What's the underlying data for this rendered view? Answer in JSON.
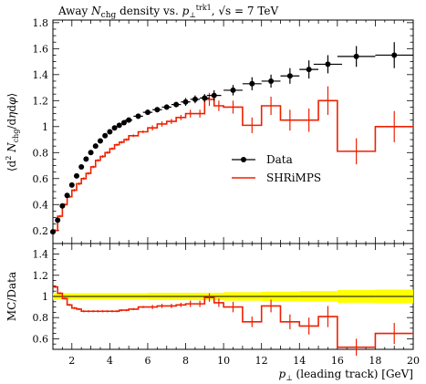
{
  "chart_data": {
    "type": "scatter",
    "title": "Away N_chg density vs. p_⊥^trk1, √s = 7 TeV",
    "xlabel": "p⊥ (leading track) [GeV]",
    "ylabel": "⟨d²Nchg/dηdφ⟩",
    "ratio_ylabel": "MC/Data",
    "xlim": [
      1,
      20
    ],
    "ylim": [
      0.1,
      1.82
    ],
    "ratio_ylim": [
      0.5,
      1.5
    ],
    "xticks": [
      2,
      4,
      6,
      8,
      10,
      12,
      14,
      16,
      18,
      20
    ],
    "yticks": [
      0.2,
      0.4,
      0.6,
      0.8,
      1.0,
      1.2,
      1.4,
      1.6,
      1.8
    ],
    "ratio_yticks": [
      0.6,
      0.8,
      1.0,
      1.2,
      1.4
    ],
    "legend_position": "right-middle",
    "series": [
      {
        "name": "Data",
        "color": "#000000",
        "x": [
          1.0,
          1.25,
          1.5,
          1.75,
          2.0,
          2.25,
          2.5,
          2.75,
          3.0,
          3.25,
          3.5,
          3.75,
          4.0,
          4.25,
          4.5,
          4.75,
          5.0,
          5.5,
          6.0,
          6.5,
          7.0,
          7.5,
          8.0,
          8.5,
          9.0,
          9.5,
          10.5,
          11.5,
          12.5,
          13.5,
          14.5,
          15.5,
          17.0,
          19.0
        ],
        "y": [
          0.19,
          0.28,
          0.39,
          0.47,
          0.55,
          0.62,
          0.69,
          0.75,
          0.8,
          0.85,
          0.89,
          0.93,
          0.96,
          0.99,
          1.01,
          1.03,
          1.05,
          1.08,
          1.11,
          1.13,
          1.15,
          1.17,
          1.19,
          1.21,
          1.22,
          1.24,
          1.28,
          1.33,
          1.35,
          1.39,
          1.44,
          1.48,
          1.54,
          1.55
        ],
        "yerr": [
          0.01,
          0.01,
          0.01,
          0.01,
          0.01,
          0.01,
          0.01,
          0.01,
          0.01,
          0.01,
          0.01,
          0.01,
          0.01,
          0.01,
          0.01,
          0.01,
          0.02,
          0.02,
          0.02,
          0.02,
          0.02,
          0.02,
          0.03,
          0.03,
          0.03,
          0.04,
          0.04,
          0.05,
          0.05,
          0.06,
          0.07,
          0.07,
          0.08,
          0.1
        ]
      },
      {
        "name": "SHRiMPS",
        "color": "#ee2000",
        "edges": [
          1.0,
          1.25,
          1.5,
          1.75,
          2.0,
          2.25,
          2.5,
          2.75,
          3.0,
          3.25,
          3.5,
          3.75,
          4.0,
          4.25,
          4.5,
          4.75,
          5.0,
          5.5,
          6.0,
          6.5,
          7.0,
          7.5,
          8.0,
          8.5,
          9.0,
          9.5,
          10.0,
          11.0,
          12.0,
          13.0,
          14.0,
          15.0,
          16.0,
          18.0,
          20.0
        ],
        "values": [
          0.2,
          0.31,
          0.4,
          0.46,
          0.51,
          0.56,
          0.6,
          0.64,
          0.69,
          0.74,
          0.77,
          0.8,
          0.83,
          0.86,
          0.88,
          0.9,
          0.93,
          0.96,
          0.99,
          1.02,
          1.04,
          1.07,
          1.1,
          1.1,
          1.21,
          1.16,
          1.15,
          1.01,
          1.16,
          1.05,
          1.05,
          1.2,
          0.81,
          1.0
        ],
        "errors": [
          0.01,
          0.01,
          0.01,
          0.01,
          0.01,
          0.01,
          0.01,
          0.01,
          0.01,
          0.01,
          0.01,
          0.01,
          0.01,
          0.01,
          0.01,
          0.01,
          0.01,
          0.01,
          0.02,
          0.02,
          0.02,
          0.02,
          0.03,
          0.03,
          0.05,
          0.04,
          0.05,
          0.06,
          0.07,
          0.08,
          0.09,
          0.11,
          0.1,
          0.12
        ]
      }
    ],
    "ratio": {
      "band_edges": [
        1.0,
        2.0,
        4.0,
        6.0,
        8.0,
        10.0,
        12.0,
        14.0,
        16.0,
        18.0,
        20.0
      ],
      "band_halfwidth": [
        0.03,
        0.03,
        0.03,
        0.035,
        0.035,
        0.04,
        0.045,
        0.05,
        0.06,
        0.065
      ],
      "values": [
        1.09,
        1.03,
        0.98,
        0.92,
        0.89,
        0.88,
        0.86,
        0.86,
        0.86,
        0.86,
        0.86,
        0.86,
        0.86,
        0.86,
        0.87,
        0.87,
        0.88,
        0.9,
        0.9,
        0.91,
        0.91,
        0.92,
        0.93,
        0.93,
        0.99,
        0.94,
        0.9,
        0.76,
        0.91,
        0.76,
        0.72,
        0.81,
        0.52,
        0.65
      ],
      "errors": [
        0.01,
        0.01,
        0.01,
        0.01,
        0.01,
        0.01,
        0.01,
        0.01,
        0.01,
        0.01,
        0.01,
        0.01,
        0.01,
        0.01,
        0.01,
        0.01,
        0.01,
        0.01,
        0.02,
        0.02,
        0.02,
        0.02,
        0.03,
        0.03,
        0.04,
        0.04,
        0.05,
        0.05,
        0.06,
        0.07,
        0.08,
        0.1,
        0.08,
        0.1
      ]
    }
  }
}
